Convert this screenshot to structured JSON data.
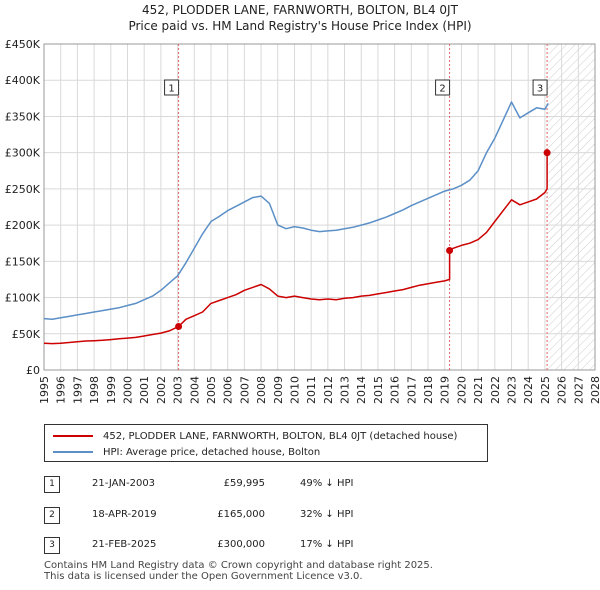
{
  "header": {
    "title": "452, PLODDER LANE, FARNWORTH, BOLTON, BL4 0JT",
    "subtitle": "Price paid vs. HM Land Registry's House Price Index (HPI)"
  },
  "chart_data": {
    "type": "line",
    "title": "452, PLODDER LANE, FARNWORTH, BOLTON, BL4 0JT",
    "subtitle": "Price paid vs. HM Land Registry's House Price Index (HPI)",
    "xlabel": "",
    "ylabel": "",
    "xlim": [
      1995,
      2028
    ],
    "ylim": [
      0,
      450000
    ],
    "grid": true,
    "legend_position": "below",
    "y_ticks": [
      0,
      50000,
      100000,
      150000,
      200000,
      250000,
      300000,
      350000,
      400000,
      450000
    ],
    "y_tick_labels": [
      "£0",
      "£50K",
      "£100K",
      "£150K",
      "£200K",
      "£250K",
      "£300K",
      "£350K",
      "£400K",
      "£450K"
    ],
    "x_ticks": [
      1995,
      1996,
      1997,
      1998,
      1999,
      2000,
      2001,
      2002,
      2003,
      2004,
      2005,
      2006,
      2007,
      2008,
      2009,
      2010,
      2011,
      2012,
      2013,
      2014,
      2015,
      2016,
      2017,
      2018,
      2019,
      2020,
      2021,
      2022,
      2023,
      2024,
      2025,
      2026,
      2027,
      2028
    ],
    "x_tick_labels": [
      "1995",
      "1996",
      "1997",
      "1998",
      "1999",
      "2000",
      "2001",
      "2002",
      "2003",
      "2004",
      "2005",
      "2006",
      "2007",
      "2008",
      "2009",
      "2010",
      "2011",
      "2012",
      "2013",
      "2014",
      "2015",
      "2016",
      "2017",
      "2018",
      "2019",
      "2020",
      "2021",
      "2022",
      "2023",
      "2024",
      "2025",
      "2026",
      "2027",
      "2028"
    ],
    "hatch_from": 2025.2,
    "series": [
      {
        "name": "452, PLODDER LANE, FARNWORTH, BOLTON, BL4 0JT (detached house)",
        "color": "#cc0000",
        "x": [
          1995.0,
          1995.5,
          1996.0,
          1996.5,
          1997.0,
          1997.5,
          1998.0,
          1998.5,
          1999.0,
          1999.5,
          2000.0,
          2000.5,
          2001.0,
          2001.5,
          2002.0,
          2002.5,
          2003.06,
          2003.06,
          2003.5,
          2004.0,
          2004.5,
          2005.0,
          2005.5,
          2006.0,
          2006.5,
          2007.0,
          2007.5,
          2008.0,
          2008.5,
          2009.0,
          2009.5,
          2010.0,
          2010.5,
          2011.0,
          2011.5,
          2012.0,
          2012.5,
          2013.0,
          2013.5,
          2014.0,
          2014.5,
          2015.0,
          2015.5,
          2016.0,
          2016.5,
          2017.0,
          2017.5,
          2018.0,
          2018.5,
          2019.0,
          2019.29,
          2019.29,
          2019.5,
          2020.0,
          2020.5,
          2021.0,
          2021.5,
          2022.0,
          2022.5,
          2023.0,
          2023.5,
          2024.0,
          2024.5,
          2025.0,
          2025.13,
          2025.13
        ],
        "y": [
          37000,
          36500,
          37000,
          38000,
          39000,
          40000,
          40500,
          41000,
          42000,
          43000,
          44000,
          45000,
          47000,
          49000,
          51000,
          54000,
          59995,
          59995,
          70000,
          75000,
          80000,
          92000,
          96000,
          100000,
          104000,
          110000,
          114000,
          118000,
          112000,
          102000,
          100000,
          102000,
          100000,
          98000,
          97000,
          98000,
          97000,
          99000,
          100000,
          102000,
          103000,
          105000,
          107000,
          109000,
          111000,
          114000,
          117000,
          119000,
          121000,
          123000,
          125000,
          165000,
          168000,
          172000,
          175000,
          180000,
          190000,
          205000,
          220000,
          235000,
          228000,
          232000,
          236000,
          245000,
          250000,
          300000
        ]
      },
      {
        "name": "HPI: Average price, detached house, Bolton",
        "color": "#5b8fc7",
        "x": [
          1995.0,
          1995.5,
          1996.0,
          1996.5,
          1997.0,
          1997.5,
          1998.0,
          1998.5,
          1999.0,
          1999.5,
          2000.0,
          2000.5,
          2001.0,
          2001.5,
          2002.0,
          2002.5,
          2003.0,
          2003.5,
          2004.0,
          2004.5,
          2005.0,
          2005.5,
          2006.0,
          2006.5,
          2007.0,
          2007.5,
          2008.0,
          2008.5,
          2009.0,
          2009.5,
          2010.0,
          2010.5,
          2011.0,
          2011.5,
          2012.0,
          2012.5,
          2013.0,
          2013.5,
          2014.0,
          2014.5,
          2015.0,
          2015.5,
          2016.0,
          2016.5,
          2017.0,
          2017.5,
          2018.0,
          2018.5,
          2019.0,
          2019.5,
          2020.0,
          2020.5,
          2021.0,
          2021.5,
          2022.0,
          2022.5,
          2023.0,
          2023.5,
          2024.0,
          2024.5,
          2025.0,
          2025.2
        ],
        "y": [
          71000,
          70000,
          72000,
          74000,
          76000,
          78000,
          80000,
          82000,
          84000,
          86000,
          89000,
          92000,
          97000,
          102000,
          110000,
          120000,
          130000,
          148000,
          168000,
          188000,
          205000,
          212000,
          220000,
          226000,
          232000,
          238000,
          240000,
          230000,
          200000,
          195000,
          198000,
          196000,
          193000,
          191000,
          192000,
          193000,
          195000,
          197000,
          200000,
          203000,
          207000,
          211000,
          216000,
          221000,
          227000,
          232000,
          237000,
          242000,
          247000,
          250000,
          255000,
          262000,
          275000,
          300000,
          320000,
          345000,
          370000,
          348000,
          355000,
          362000,
          360000,
          368000
        ]
      }
    ],
    "annotations": [
      {
        "label": "1",
        "x": 2003.06
      },
      {
        "label": "2",
        "x": 2019.29
      },
      {
        "label": "3",
        "x": 2025.13
      }
    ],
    "sale_points": [
      {
        "x": 2003.06,
        "y": 59995
      },
      {
        "x": 2019.29,
        "y": 165000
      },
      {
        "x": 2025.13,
        "y": 300000
      }
    ]
  },
  "legend": {
    "items": [
      {
        "label": "452, PLODDER LANE, FARNWORTH, BOLTON, BL4 0JT (detached house)",
        "color": "#cc0000"
      },
      {
        "label": "HPI: Average price, detached house, Bolton",
        "color": "#5b8fc7"
      }
    ]
  },
  "transactions": [
    {
      "num": "1",
      "date": "21-JAN-2003",
      "price": "£59,995",
      "hpi": "49% ↓ HPI"
    },
    {
      "num": "2",
      "date": "18-APR-2019",
      "price": "£165,000",
      "hpi": "32% ↓ HPI"
    },
    {
      "num": "3",
      "date": "21-FEB-2025",
      "price": "£300,000",
      "hpi": "17% ↓ HPI"
    }
  ],
  "footer": {
    "line1": "Contains HM Land Registry data © Crown copyright and database right 2025.",
    "line2": "This data is licensed under the Open Government Licence v3.0."
  }
}
